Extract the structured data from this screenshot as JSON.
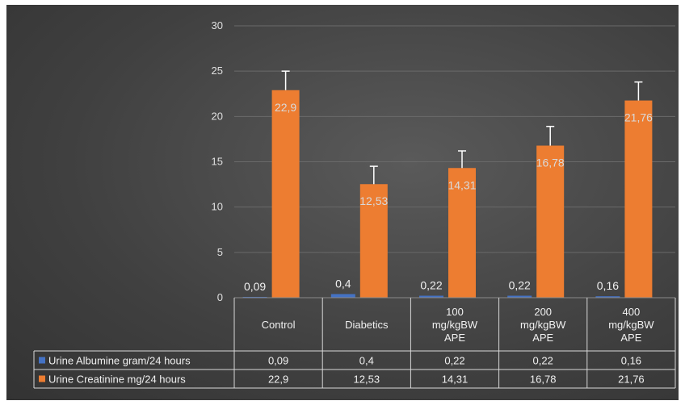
{
  "chart_data": {
    "type": "bar",
    "categories": [
      "Control",
      "Diabetics",
      "100 mg/kgBW APE",
      "200 mg/kgBW APE",
      "400 mg/kgBW APE"
    ],
    "category_lines": [
      [
        "Control"
      ],
      [
        "Diabetics"
      ],
      [
        "100",
        "mg/kgBW",
        "APE"
      ],
      [
        "200",
        "mg/kgBW",
        "APE"
      ],
      [
        "400",
        "mg/kgBW",
        "APE"
      ]
    ],
    "series": [
      {
        "name": "Urine Albumine gram/24 hours",
        "values": [
          0.09,
          0.4,
          0.22,
          0.22,
          0.16
        ],
        "value_labels": [
          "0,09",
          "0,4",
          "0,22",
          "0,22",
          "0,16"
        ],
        "color": "#4472c4"
      },
      {
        "name": "Urine Creatinine mg/24 hours",
        "values": [
          22.9,
          12.53,
          14.31,
          16.78,
          21.76
        ],
        "value_labels": [
          "22,9",
          "12,53",
          "14,31",
          "16,78",
          "21,76"
        ],
        "error_upper": [
          25.0,
          14.5,
          16.2,
          18.9,
          23.8
        ],
        "color": "#ed7d31"
      }
    ],
    "ylim": [
      0,
      30
    ],
    "yticks": [
      0,
      5,
      10,
      15,
      20,
      25,
      30
    ],
    "grid": true,
    "legend": "data-table-left"
  }
}
